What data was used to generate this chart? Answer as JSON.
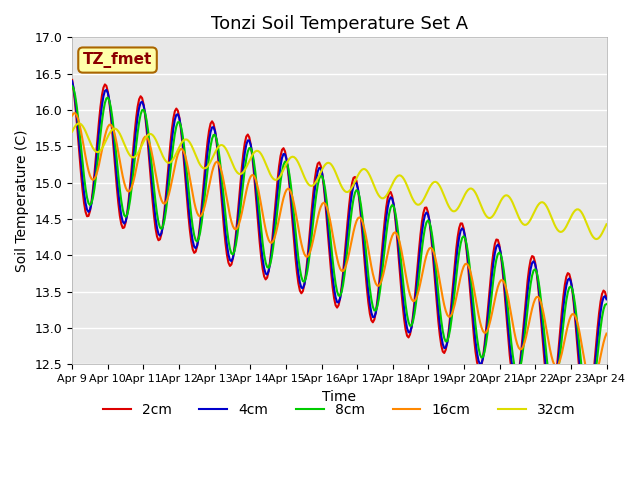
{
  "title": "Tonzi Soil Temperature Set A",
  "xlabel": "Time",
  "ylabel": "Soil Temperature (C)",
  "ylim": [
    12.5,
    17.0
  ],
  "yticks": [
    12.5,
    13.0,
    13.5,
    14.0,
    14.5,
    15.0,
    15.5,
    16.0,
    16.5,
    17.0
  ],
  "x_labels": [
    "Apr 9",
    "Apr 10",
    "Apr 11",
    "Apr 12",
    "Apr 13",
    "Apr 14",
    "Apr 15",
    "Apr 16",
    "Apr 17",
    "Apr 18",
    "Apr 19",
    "Apr 20",
    "Apr 21",
    "Apr 22",
    "Apr 23",
    "Apr 24"
  ],
  "legend_labels": [
    "2cm",
    "4cm",
    "8cm",
    "16cm",
    "32cm"
  ],
  "line_colors": [
    "#dd0000",
    "#0000cc",
    "#00cc00",
    "#ff8800",
    "#dddd00"
  ],
  "annotation_text": "TZ_fmet",
  "annotation_bg": "#ffffaa",
  "annotation_border": "#aa6600",
  "background_color": "#e8e8e8",
  "n_points": 360,
  "title_fontsize": 13,
  "axis_label_fontsize": 10,
  "tick_fontsize": 9,
  "legend_fontsize": 10
}
